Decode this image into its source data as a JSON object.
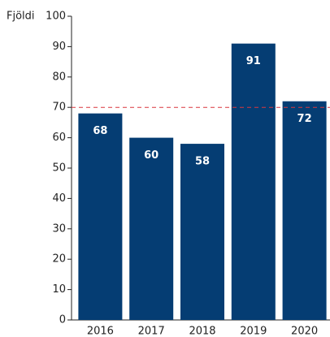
{
  "chart_data": {
    "type": "bar",
    "y_label": "Fjöldi",
    "categories": [
      "2016",
      "2017",
      "2018",
      "2019",
      "2020"
    ],
    "values": [
      68,
      60,
      58,
      91,
      72
    ],
    "color": "#053d73",
    "ylim": [
      0,
      100
    ],
    "yticks": [
      0,
      10,
      20,
      30,
      40,
      50,
      60,
      70,
      80,
      90,
      100
    ],
    "reference_line": 70,
    "reference_color": "#d9363e"
  }
}
